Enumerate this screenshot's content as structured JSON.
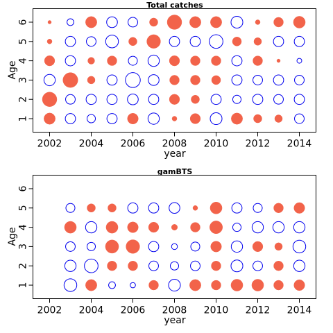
{
  "colors": {
    "positive": "#F2634A",
    "negative": "#0000EE",
    "axis": "#000000",
    "background": "#ffffff"
  },
  "chart_data": [
    {
      "type": "bubble-residuals",
      "title": "Total catches",
      "xlabel": "year",
      "ylabel": "Age",
      "xlim": [
        2001.2,
        2014.8
      ],
      "ylim": [
        0.3,
        6.7
      ],
      "xticks": [
        2002,
        2004,
        2006,
        2008,
        2010,
        2012,
        2014
      ],
      "yticks": [
        1,
        2,
        3,
        4,
        5,
        6
      ],
      "years": [
        2002,
        2003,
        2004,
        2005,
        2006,
        2007,
        2008,
        2009,
        2010,
        2011,
        2012,
        2013,
        2014
      ],
      "ages": [
        1,
        2,
        3,
        4,
        5,
        6
      ],
      "residuals": {
        "1": [
          0.55,
          -0.45,
          -0.3,
          -0.45,
          0.5,
          -0.55,
          0.1,
          0.45,
          -0.6,
          0.55,
          0.3,
          0.25,
          -0.4
        ],
        "2": [
          0.9,
          -0.4,
          -0.45,
          -0.45,
          -0.5,
          -0.45,
          0.45,
          0.3,
          -0.45,
          -0.3,
          -0.45,
          -0.4,
          -0.45
        ],
        "3": [
          -0.55,
          0.95,
          0.25,
          -0.45,
          -0.95,
          -0.5,
          0.4,
          0.4,
          0.35,
          -0.45,
          -0.4,
          -0.45,
          -0.4
        ],
        "4": [
          0.45,
          -0.45,
          0.2,
          0.4,
          -0.35,
          -0.55,
          0.45,
          0.4,
          0.4,
          -0.45,
          0.4,
          0.05,
          -0.1
        ],
        "5": [
          0.1,
          -0.45,
          -0.4,
          -0.7,
          0.3,
          0.8,
          -0.45,
          -0.45,
          -0.8,
          0.35,
          0.25,
          -0.45,
          -0.45
        ],
        "6": [
          0.05,
          -0.2,
          0.55,
          -0.5,
          -0.4,
          0.3,
          0.9,
          0.55,
          0.55,
          -0.6,
          0.1,
          0.4,
          0.6
        ]
      }
    },
    {
      "type": "bubble-residuals",
      "title": "gamBTS",
      "xlabel": "year",
      "ylabel": "Age",
      "xlim": [
        2001.2,
        2014.8
      ],
      "ylim": [
        0.3,
        6.7
      ],
      "xticks": [
        2002,
        2004,
        2006,
        2008,
        2010,
        2012,
        2014
      ],
      "yticks": [
        1,
        2,
        3,
        4,
        5,
        6
      ],
      "years": [
        2003,
        2004,
        2005,
        2006,
        2007,
        2008,
        2009,
        2010,
        2011,
        2012,
        2013,
        2014
      ],
      "ages": [
        1,
        2,
        3,
        4,
        5
      ],
      "residuals": {
        "1": [
          -0.7,
          0.55,
          -0.2,
          -0.12,
          0.4,
          -0.6,
          0.55,
          0.4,
          0.6,
          0.6,
          0.4,
          0.5
        ],
        "2": [
          -0.55,
          -0.8,
          0.4,
          0.4,
          -0.4,
          -0.3,
          -0.4,
          0.4,
          -0.6,
          -0.4,
          0.4,
          -0.55
        ],
        "3": [
          -0.4,
          -0.3,
          0.75,
          0.8,
          -0.45,
          -0.15,
          -0.35,
          0.5,
          -0.55,
          0.45,
          0.25,
          -0.7
        ],
        "4": [
          0.6,
          -0.55,
          0.6,
          0.5,
          0.45,
          0.15,
          0.4,
          0.7,
          -0.3,
          -0.55,
          -0.55,
          -0.55
        ],
        "5": [
          -0.35,
          0.3,
          0.3,
          -0.45,
          -0.45,
          -0.5,
          0.1,
          0.6,
          -0.45,
          -0.35,
          0.4,
          0.5
        ]
      }
    }
  ]
}
